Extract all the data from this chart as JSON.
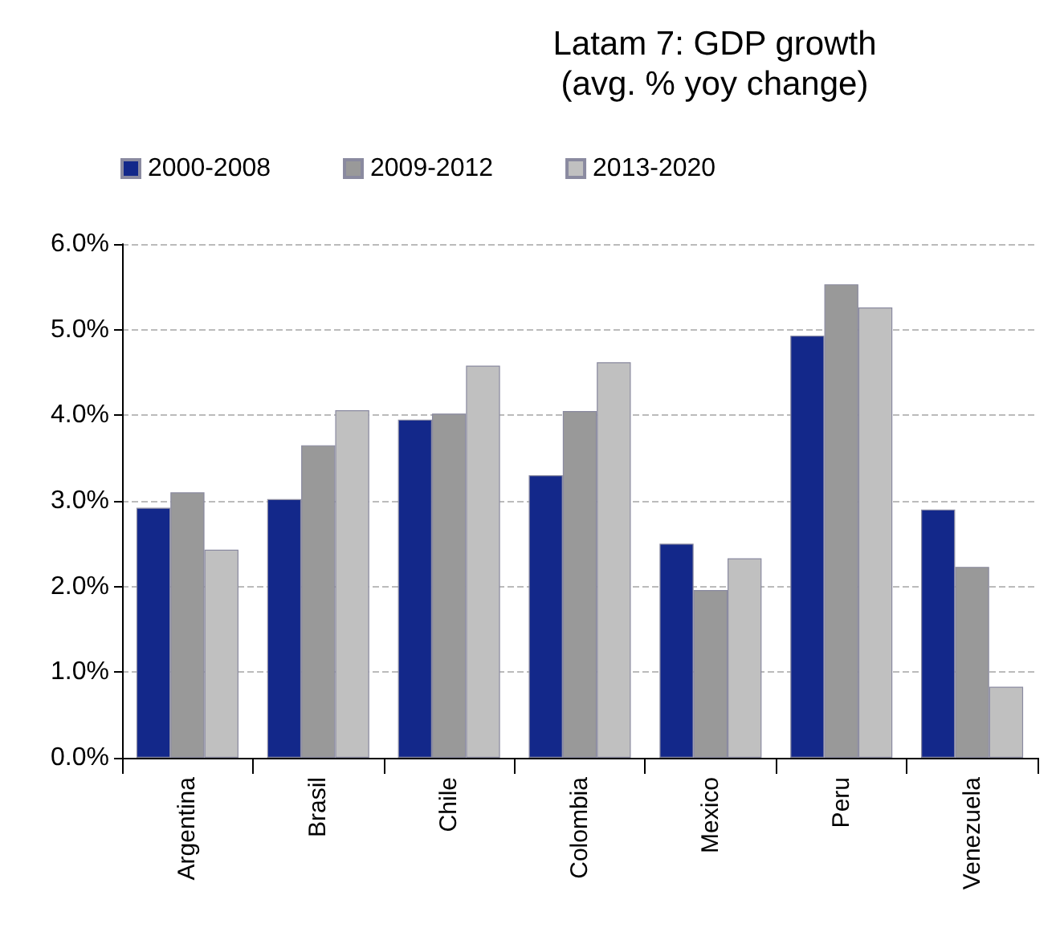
{
  "chart_data": {
    "type": "bar",
    "title": "Latam 7: GDP growth",
    "subtitle": "(avg. % yoy change)",
    "categories": [
      "Argentina",
      "Brasil",
      "Chile",
      "Colombia",
      "Mexico",
      "Peru",
      "Venezuela"
    ],
    "series": [
      {
        "name": "2000-2008",
        "color": "#13288a",
        "values": [
          2.92,
          3.02,
          3.95,
          3.3,
          2.5,
          4.93,
          2.9
        ]
      },
      {
        "name": "2009-2012",
        "color": "#999999",
        "values": [
          3.1,
          3.65,
          4.02,
          4.05,
          1.96,
          5.53,
          2.23
        ]
      },
      {
        "name": "2013-2020",
        "color": "#c0c0c0",
        "values": [
          2.43,
          4.06,
          4.58,
          4.62,
          2.33,
          5.26,
          0.83
        ]
      }
    ],
    "ylim": [
      0,
      6
    ],
    "yticks": [
      {
        "value": 0,
        "label": "0.0%"
      },
      {
        "value": 1,
        "label": "1.0%"
      },
      {
        "value": 2,
        "label": "2.0%"
      },
      {
        "value": 3,
        "label": "3.0%"
      },
      {
        "value": 4,
        "label": "4.0%"
      },
      {
        "value": 5,
        "label": "5.0%"
      },
      {
        "value": 6,
        "label": "6.0%"
      }
    ],
    "grid": "y",
    "legend": "top left"
  }
}
